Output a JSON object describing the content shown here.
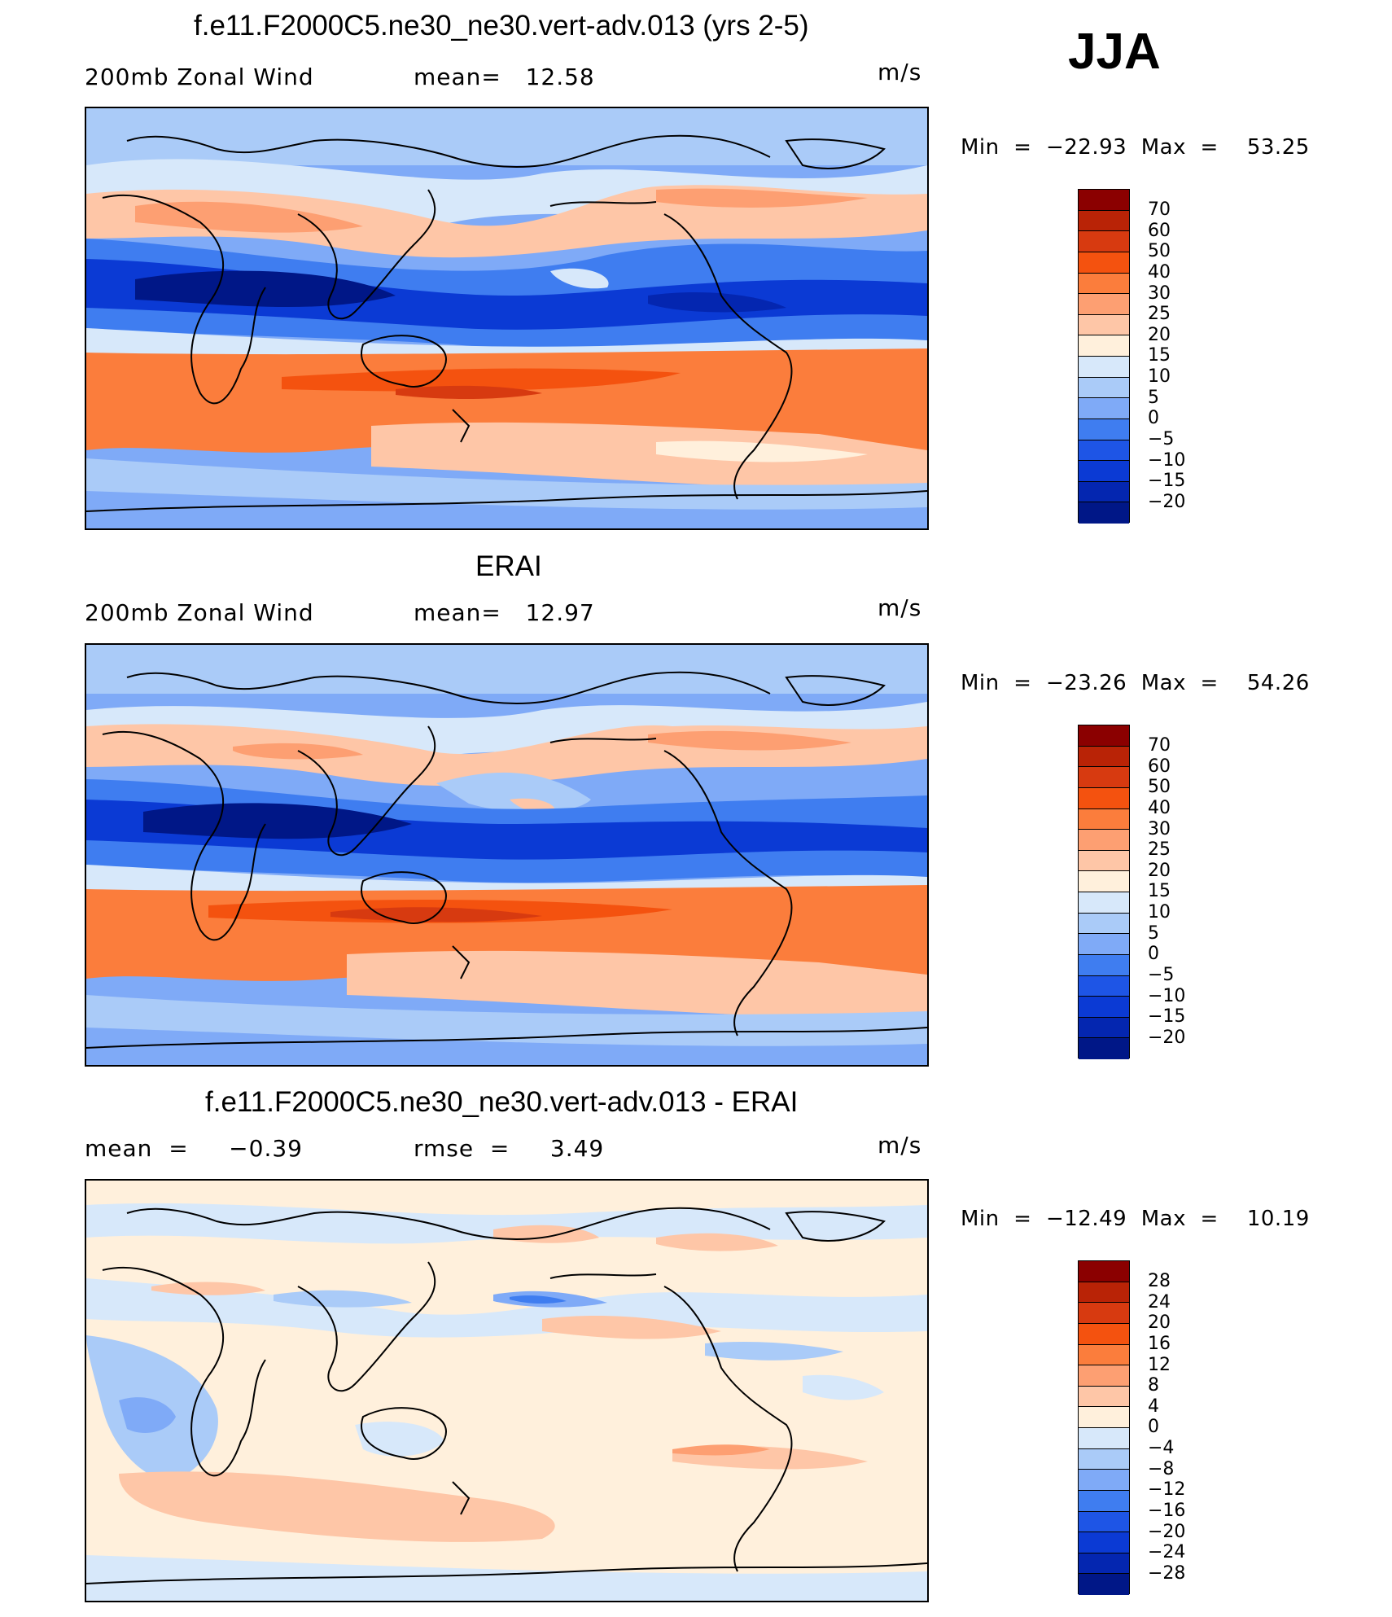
{
  "season": "JJA",
  "panels": [
    {
      "title": "f.e11.F2000C5.ne30_ne30.vert-adv.013 (yrs 2-5)",
      "left_label": "200mb Zonal Wind",
      "center_label": "mean=   12.58",
      "units": "m/s",
      "minmax": "Min  =  −22.93  Max  =    53.25",
      "colorbar_levels": [
        "70",
        "60",
        "50",
        "40",
        "30",
        "25",
        "20",
        "15",
        "10",
        "5",
        "0",
        "−5",
        "−10",
        "−15",
        "−20"
      ]
    },
    {
      "title": "ERAI",
      "left_label": "200mb Zonal Wind",
      "center_label": "mean=   12.97",
      "units": "m/s",
      "minmax": "Min  =  −23.26  Max  =    54.26",
      "colorbar_levels": [
        "70",
        "60",
        "50",
        "40",
        "30",
        "25",
        "20",
        "15",
        "10",
        "5",
        "0",
        "−5",
        "−10",
        "−15",
        "−20"
      ]
    },
    {
      "title": "f.e11.F2000C5.ne30_ne30.vert-adv.013 - ERAI",
      "left_label": "mean  =     −0.39",
      "center_label": "rmse  =     3.49",
      "units": "m/s",
      "minmax": "Min  =  −12.49  Max  =    10.19",
      "colorbar_levels": [
        "28",
        "24",
        "20",
        "16",
        "12",
        "8",
        "4",
        "0",
        "−4",
        "−8",
        "−12",
        "−16",
        "−20",
        "−24",
        "−28"
      ]
    }
  ],
  "colors": {
    "full_scale": [
      "#8b0000",
      "#b92306",
      "#d73a10",
      "#f4520f",
      "#fb7d3c",
      "#fd9f72",
      "#fec6a7",
      "#fff0dc",
      "#d7e8fa",
      "#aacbf8",
      "#7faaf7",
      "#3f7df0",
      "#1e55e6",
      "#0b3ad4",
      "#0426b0",
      "#001787"
    ],
    "diff_scale": [
      "#8b0000",
      "#b92306",
      "#d73a10",
      "#f4520f",
      "#fb7d3c",
      "#fd9f72",
      "#fec6a7",
      "#fff0dc",
      "#d7e8fa",
      "#aacbf8",
      "#7faaf7",
      "#3f7df0",
      "#1e55e6",
      "#0b3ad4",
      "#0426b0",
      "#001787"
    ]
  }
}
